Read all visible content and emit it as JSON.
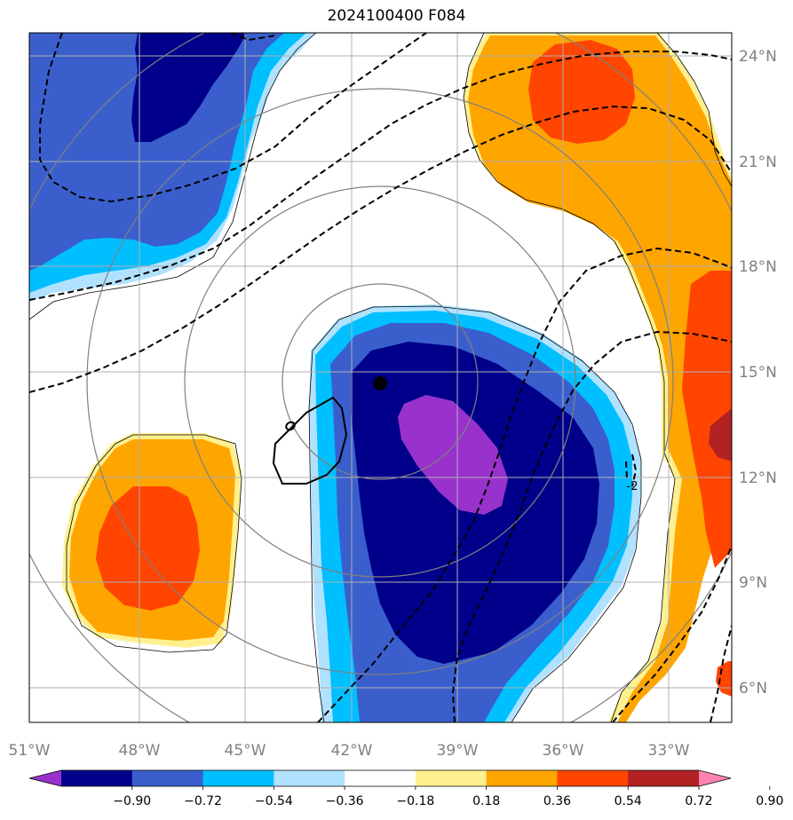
{
  "title": "2024100400 F084",
  "map": {
    "lon_ticks": [
      "51°W",
      "48°W",
      "45°W",
      "42°W",
      "39°W",
      "36°W",
      "33°W"
    ],
    "lat_ticks": [
      "24°N",
      "21°N",
      "18°N",
      "15°N",
      "12°N",
      "9°N",
      "6°N"
    ],
    "contour_label": "-2",
    "center_marker": "filled-circle"
  },
  "colorbar": {
    "labels": [
      "−0.90",
      "−0.72",
      "−0.54",
      "−0.36",
      "−0.18",
      "0.18",
      "0.36",
      "0.54",
      "0.72",
      "0.90"
    ],
    "colors": [
      "#9932cc",
      "#00008b",
      "#3a5fcd",
      "#00bfff",
      "#b0e2ff",
      "#ffffff",
      "#fff08f",
      "#ffa500",
      "#ff4500",
      "#b22222",
      "#ff83b0"
    ]
  },
  "palette": {
    "fill_purple": "#9932cc",
    "fill_navy": "#00008b",
    "fill_blue": "#3a5fcd",
    "fill_cyan": "#00bfff",
    "fill_lightblue": "#b0e2ff",
    "fill_yellow": "#fff08f",
    "fill_orange": "#ffa500",
    "fill_redorange": "#ff4500",
    "fill_firebrick": "#b22222",
    "gridline": "#b0b0b0",
    "range_ring": "#808080"
  }
}
